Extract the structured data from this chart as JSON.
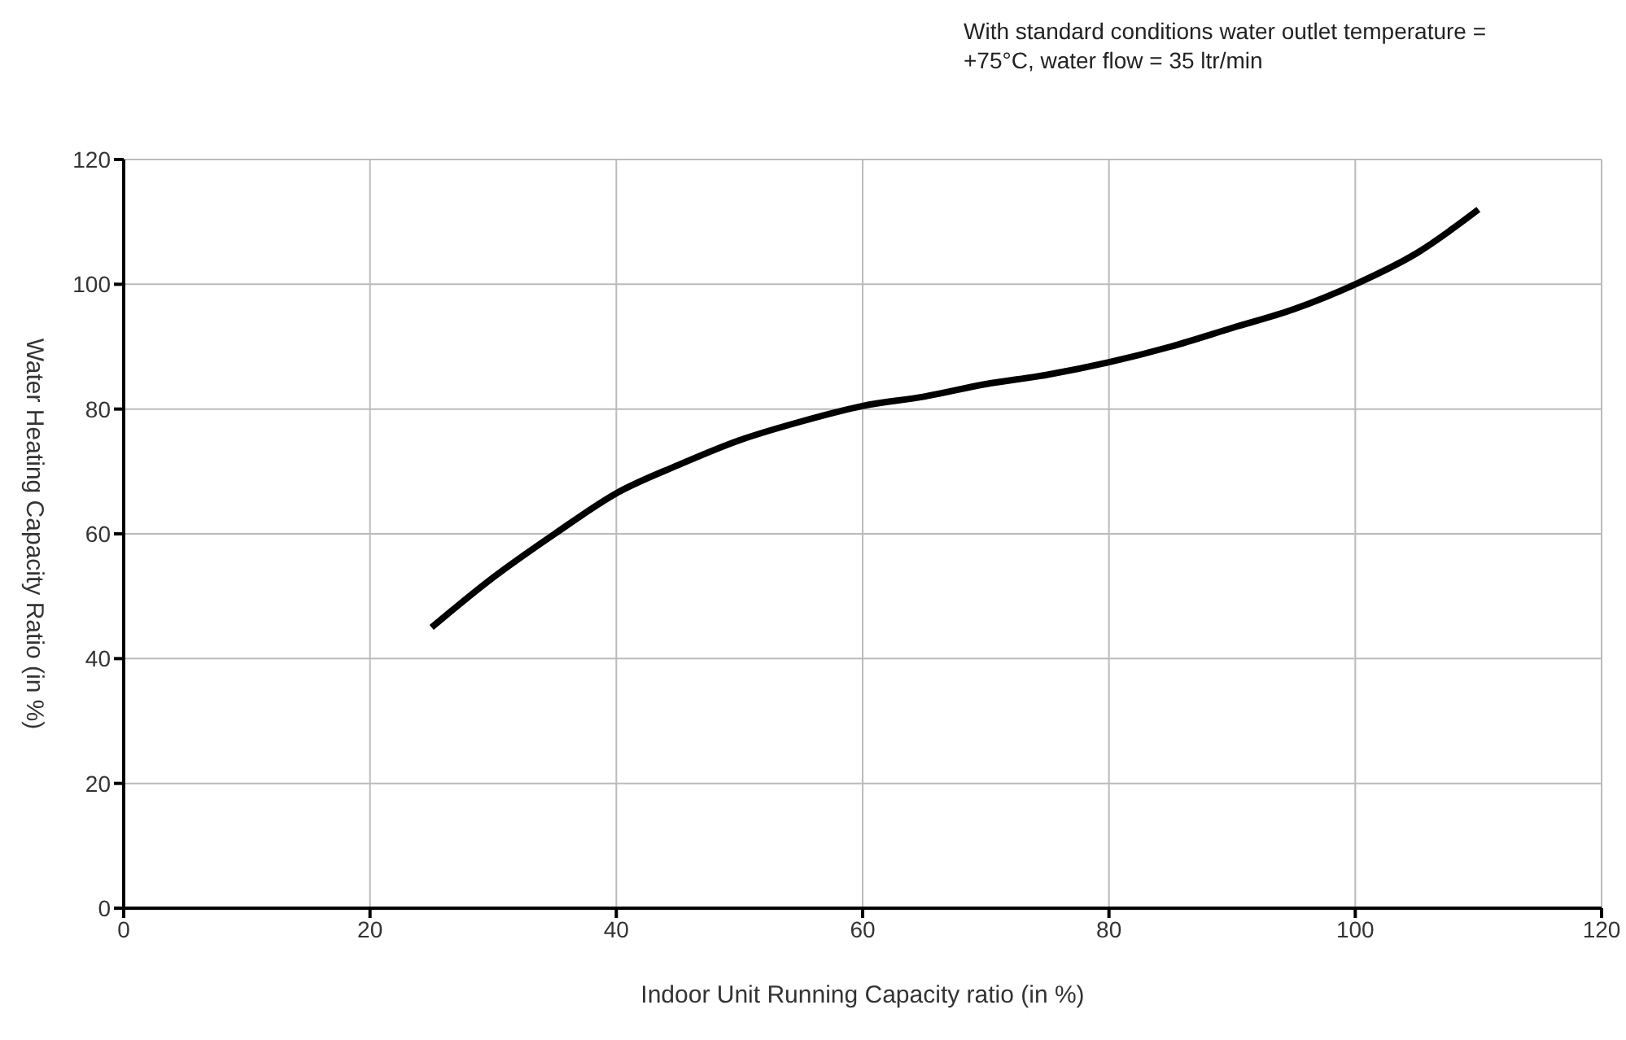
{
  "chart_data": {
    "type": "line",
    "xlabel": "Indoor Unit Running Capacity ratio (in %)",
    "ylabel": "Water Heating Capacity Ratio (in %)",
    "annotations": [
      "With standard conditions water outlet temperature = +75°C, water flow = 35 ltr/min"
    ],
    "x": [
      25,
      30,
      35,
      40,
      45,
      50,
      55,
      60,
      65,
      70,
      75,
      80,
      85,
      90,
      95,
      100,
      105,
      110
    ],
    "series": [
      {
        "color": "#000000",
        "values": [
          45,
          53,
          60,
          66.5,
          71,
          75,
          78,
          80.5,
          82,
          84,
          85.5,
          87.5,
          90,
          93,
          96,
          100,
          105,
          112
        ]
      }
    ],
    "xlim": [
      0,
      120
    ],
    "xticks": [
      0,
      20,
      40,
      60,
      80,
      100,
      120
    ],
    "ylim": [
      0,
      120
    ],
    "yticks": [
      0,
      20,
      40,
      60,
      80,
      100,
      120
    ],
    "grid": true,
    "marker": "none",
    "line_style": "solid"
  }
}
